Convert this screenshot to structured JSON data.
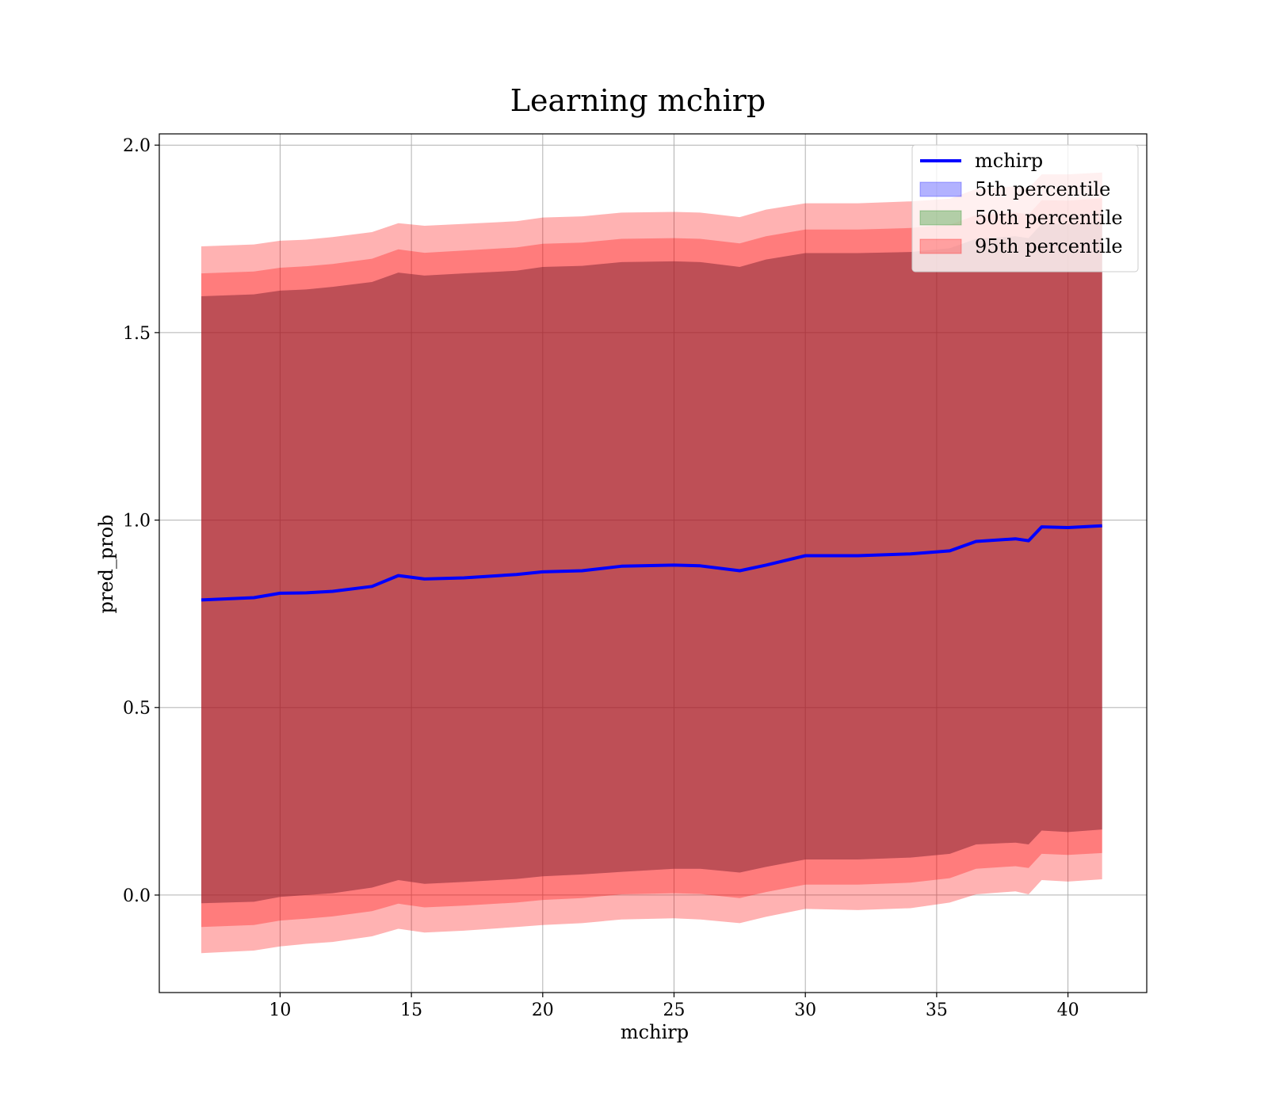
{
  "chart_data": {
    "type": "area",
    "title": "Learning mchirp",
    "xlabel": "mchirp",
    "ylabel": "pred_prob",
    "xlim": [
      5.4,
      43.0
    ],
    "ylim": [
      -0.26,
      2.03
    ],
    "grid": true,
    "legend_position": "top-right",
    "x_ticks": [
      10,
      15,
      20,
      25,
      30,
      35,
      40
    ],
    "y_ticks": [
      0.0,
      0.5,
      1.0,
      1.5,
      2.0
    ],
    "x_tick_labels": [
      "10",
      "15",
      "20",
      "25",
      "30",
      "35",
      "40"
    ],
    "y_tick_labels": [
      "0.0",
      "0.5",
      "1.0",
      "1.5",
      "2.0"
    ],
    "x": [
      7.0,
      9.0,
      10.0,
      11.0,
      12.0,
      13.5,
      14.5,
      15.5,
      17.0,
      19.0,
      20.0,
      21.5,
      23.0,
      25.0,
      26.0,
      27.5,
      28.5,
      30.0,
      32.0,
      34.0,
      35.5,
      36.5,
      38.0,
      38.5,
      39.0,
      40.0,
      41.3
    ],
    "series": [
      {
        "name": "mchirp",
        "kind": "line",
        "color": "#0000ff",
        "values": [
          0.787,
          0.793,
          0.805,
          0.806,
          0.81,
          0.823,
          0.852,
          0.843,
          0.846,
          0.855,
          0.862,
          0.865,
          0.877,
          0.88,
          0.878,
          0.865,
          0.88,
          0.905,
          0.905,
          0.91,
          0.918,
          0.943,
          0.95,
          0.945,
          0.982,
          0.98,
          0.985
        ]
      },
      {
        "name": "5th percentile",
        "kind": "band",
        "color": "#0000ff",
        "lower": [
          -0.022,
          -0.018,
          -0.005,
          0.0,
          0.005,
          0.02,
          0.04,
          0.03,
          0.035,
          0.043,
          0.05,
          0.055,
          0.062,
          0.07,
          0.07,
          0.06,
          0.075,
          0.095,
          0.095,
          0.1,
          0.11,
          0.135,
          0.14,
          0.135,
          0.172,
          0.168,
          0.175
        ],
        "upper": [
          1.597,
          1.602,
          1.612,
          1.615,
          1.622,
          1.635,
          1.66,
          1.652,
          1.658,
          1.665,
          1.675,
          1.678,
          1.688,
          1.69,
          1.688,
          1.675,
          1.695,
          1.712,
          1.712,
          1.715,
          1.725,
          1.75,
          1.757,
          1.752,
          1.79,
          1.79,
          1.795
        ]
      },
      {
        "name": "50th percentile",
        "kind": "band",
        "color": "#008000",
        "lower": [
          -0.022,
          -0.018,
          -0.005,
          0.0,
          0.005,
          0.02,
          0.04,
          0.03,
          0.035,
          0.043,
          0.05,
          0.055,
          0.062,
          0.07,
          0.07,
          0.06,
          0.075,
          0.095,
          0.095,
          0.1,
          0.11,
          0.135,
          0.14,
          0.135,
          0.172,
          0.168,
          0.175
        ],
        "upper": [
          1.597,
          1.602,
          1.612,
          1.615,
          1.622,
          1.635,
          1.66,
          1.652,
          1.658,
          1.665,
          1.675,
          1.678,
          1.688,
          1.69,
          1.688,
          1.675,
          1.695,
          1.712,
          1.712,
          1.715,
          1.725,
          1.75,
          1.757,
          1.752,
          1.79,
          1.79,
          1.795
        ]
      },
      {
        "name": "95th percentile",
        "kind": "band",
        "color": "#ff0000",
        "lower": [
          -0.155,
          -0.148,
          -0.137,
          -0.13,
          -0.125,
          -0.11,
          -0.09,
          -0.1,
          -0.095,
          -0.085,
          -0.08,
          -0.075,
          -0.065,
          -0.062,
          -0.065,
          -0.075,
          -0.058,
          -0.037,
          -0.04,
          -0.035,
          -0.02,
          0.002,
          0.01,
          0.002,
          0.04,
          0.036,
          0.042
        ],
        "upper": [
          1.73,
          1.735,
          1.745,
          1.748,
          1.755,
          1.768,
          1.792,
          1.785,
          1.79,
          1.797,
          1.807,
          1.81,
          1.82,
          1.822,
          1.82,
          1.808,
          1.828,
          1.845,
          1.845,
          1.85,
          1.857,
          1.883,
          1.89,
          1.885,
          1.922,
          1.922,
          1.927
        ]
      },
      {
        "name": "95th percentile inner",
        "kind": "band-inner",
        "color": "#ff0000",
        "lower": [
          -0.085,
          -0.08,
          -0.068,
          -0.063,
          -0.057,
          -0.043,
          -0.023,
          -0.033,
          -0.028,
          -0.02,
          -0.013,
          -0.008,
          0.002,
          0.005,
          0.003,
          -0.008,
          0.008,
          0.028,
          0.028,
          0.033,
          0.045,
          0.07,
          0.077,
          0.072,
          0.11,
          0.107,
          0.112
        ],
        "upper": [
          1.658,
          1.663,
          1.673,
          1.677,
          1.683,
          1.697,
          1.722,
          1.713,
          1.719,
          1.727,
          1.737,
          1.74,
          1.75,
          1.752,
          1.75,
          1.738,
          1.757,
          1.775,
          1.775,
          1.779,
          1.788,
          1.813,
          1.82,
          1.815,
          1.853,
          1.852,
          1.858
        ]
      }
    ],
    "legend": [
      {
        "label": "mchirp",
        "kind": "line",
        "color": "#0000ff"
      },
      {
        "label": "5th percentile",
        "kind": "patch",
        "color": "#0000ff"
      },
      {
        "label": "50th percentile",
        "kind": "patch",
        "color": "#008000"
      },
      {
        "label": "95th percentile",
        "kind": "patch",
        "color": "#ff0000"
      }
    ]
  }
}
